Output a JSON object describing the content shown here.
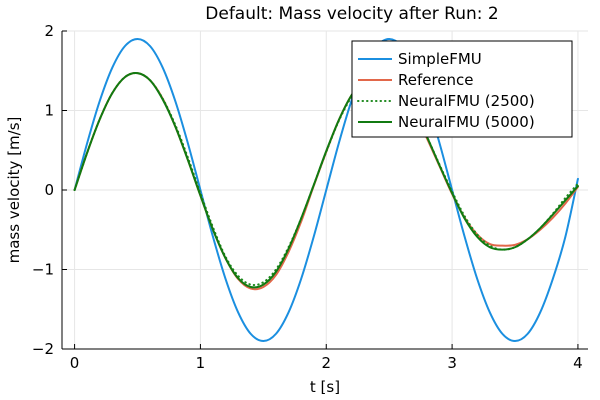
{
  "chart_data": {
    "type": "line",
    "title": "Default: Mass velocity after Run: 2",
    "xlabel": "t [s]",
    "ylabel": "mass velocity [m/s]",
    "xlim": [
      -0.1,
      4.08
    ],
    "ylim": [
      -2,
      2
    ],
    "xticks": [
      0,
      1,
      2,
      3,
      4
    ],
    "xtick_labels": [
      "0",
      "1",
      "2",
      "3",
      "4"
    ],
    "yticks": [
      -2,
      -1,
      0,
      1,
      2
    ],
    "ytick_labels": [
      "−2",
      "−1",
      "0",
      "1",
      "2"
    ],
    "grid": true,
    "legend_position": "top-right",
    "series": [
      {
        "name": "SimpleFMU",
        "color": "#1b8fe0",
        "style": "solid",
        "x": [
          0,
          0.1,
          0.2,
          0.3,
          0.4,
          0.5,
          0.6,
          0.7,
          0.8,
          0.9,
          1.0,
          1.1,
          1.2,
          1.3,
          1.4,
          1.5,
          1.6,
          1.7,
          1.8,
          1.9,
          2.0,
          2.1,
          2.2,
          2.3,
          2.4,
          2.5,
          2.6,
          2.7,
          2.8,
          2.9,
          3.0,
          3.1,
          3.2,
          3.3,
          3.4,
          3.5,
          3.6,
          3.7,
          3.8,
          3.9,
          4.0
        ],
        "y": [
          0,
          0.59,
          1.12,
          1.54,
          1.81,
          1.9,
          1.81,
          1.54,
          1.12,
          0.59,
          0,
          -0.59,
          -1.12,
          -1.54,
          -1.81,
          -1.9,
          -1.81,
          -1.54,
          -1.12,
          -0.59,
          0,
          0.59,
          1.12,
          1.54,
          1.81,
          1.9,
          1.81,
          1.54,
          1.12,
          0.59,
          0,
          -0.59,
          -1.12,
          -1.54,
          -1.81,
          -1.9,
          -1.81,
          -1.54,
          -1.12,
          -0.59,
          0.14
        ]
      },
      {
        "name": "Reference",
        "color": "#e2674a",
        "style": "solid",
        "x": [
          0,
          0.1,
          0.2,
          0.3,
          0.4,
          0.5,
          0.6,
          0.7,
          0.8,
          0.9,
          1.0,
          1.1,
          1.2,
          1.3,
          1.4,
          1.5,
          1.6,
          1.7,
          1.8,
          1.9,
          2.0,
          2.1,
          2.2,
          2.3,
          2.4,
          2.5,
          2.6,
          2.7,
          2.8,
          2.9,
          3.0,
          3.1,
          3.2,
          3.3,
          3.4,
          3.5,
          3.6,
          3.7,
          3.8,
          3.9,
          4.0
        ],
        "y": [
          0,
          0.47,
          0.89,
          1.22,
          1.42,
          1.47,
          1.38,
          1.15,
          0.8,
          0.38,
          -0.07,
          -0.5,
          -0.86,
          -1.12,
          -1.24,
          -1.22,
          -1.07,
          -0.78,
          -0.4,
          0.05,
          0.48,
          0.88,
          1.19,
          1.39,
          1.47,
          1.42,
          1.25,
          0.98,
          0.65,
          0.3,
          -0.05,
          -0.35,
          -0.56,
          -0.68,
          -0.7,
          -0.69,
          -0.62,
          -0.5,
          -0.35,
          -0.17,
          0.04
        ]
      },
      {
        "name": "NeuralFMU (2500)",
        "color": "#1f8a1f",
        "style": "dotted",
        "x": [
          0,
          0.1,
          0.2,
          0.3,
          0.4,
          0.5,
          0.6,
          0.7,
          0.8,
          0.9,
          1.0,
          1.1,
          1.2,
          1.3,
          1.4,
          1.5,
          1.6,
          1.7,
          1.8,
          1.9,
          2.0,
          2.1,
          2.2,
          2.3,
          2.4,
          2.5,
          2.6,
          2.7,
          2.8,
          2.9,
          3.0,
          3.1,
          3.2,
          3.3,
          3.4,
          3.5,
          3.6,
          3.7,
          3.8,
          3.9,
          4.0
        ],
        "y": [
          0,
          0.47,
          0.89,
          1.22,
          1.42,
          1.47,
          1.38,
          1.15,
          0.82,
          0.41,
          -0.04,
          -0.47,
          -0.84,
          -1.08,
          -1.19,
          -1.16,
          -1.0,
          -0.72,
          -0.36,
          0.06,
          0.48,
          0.87,
          1.17,
          1.37,
          1.45,
          1.4,
          1.24,
          0.99,
          0.67,
          0.32,
          -0.02,
          -0.33,
          -0.56,
          -0.7,
          -0.75,
          -0.72,
          -0.62,
          -0.48,
          -0.3,
          -0.1,
          0.08
        ]
      },
      {
        "name": "NeuralFMU (5000)",
        "color": "#117a11",
        "style": "solid",
        "x": [
          0,
          0.1,
          0.2,
          0.3,
          0.4,
          0.5,
          0.6,
          0.7,
          0.8,
          0.9,
          1.0,
          1.1,
          1.2,
          1.3,
          1.4,
          1.5,
          1.6,
          1.7,
          1.8,
          1.9,
          2.0,
          2.1,
          2.2,
          2.3,
          2.4,
          2.5,
          2.6,
          2.7,
          2.8,
          2.9,
          3.0,
          3.1,
          3.2,
          3.3,
          3.4,
          3.5,
          3.6,
          3.7,
          3.8,
          3.9,
          4.0
        ],
        "y": [
          0,
          0.47,
          0.89,
          1.22,
          1.42,
          1.47,
          1.38,
          1.14,
          0.8,
          0.38,
          -0.07,
          -0.5,
          -0.86,
          -1.11,
          -1.22,
          -1.19,
          -1.03,
          -0.74,
          -0.36,
          0.06,
          0.49,
          0.88,
          1.19,
          1.39,
          1.47,
          1.42,
          1.26,
          1.0,
          0.67,
          0.31,
          -0.04,
          -0.36,
          -0.59,
          -0.72,
          -0.75,
          -0.72,
          -0.62,
          -0.48,
          -0.31,
          -0.13,
          0.05
        ]
      }
    ]
  }
}
